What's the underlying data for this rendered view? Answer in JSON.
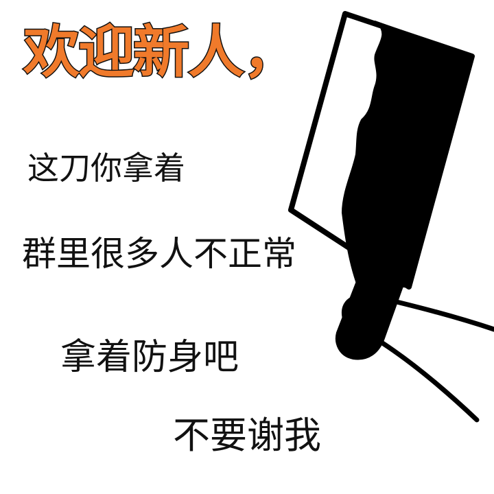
{
  "caption": {
    "title": "欢迎新人，",
    "lines": [
      "这刀你拿着",
      "群里很多人不正常",
      "拿着防身吧",
      "不要谢我"
    ]
  },
  "colors": {
    "title_fill": "#f07a2b",
    "title_outline": "#111111",
    "text": "#111111",
    "ink": "#000000",
    "background": "#ffffff"
  },
  "illustration": {
    "subject": "cleaver-knife-in-hand-icon"
  }
}
